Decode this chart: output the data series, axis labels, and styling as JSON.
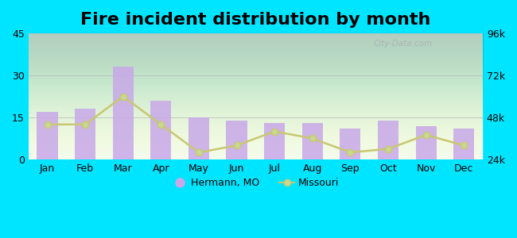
{
  "title": "Fire incident distribution by month",
  "months": [
    "Jan",
    "Feb",
    "Mar",
    "Apr",
    "May",
    "Jun",
    "Jul",
    "Aug",
    "Sep",
    "Oct",
    "Nov",
    "Dec"
  ],
  "hermann_bars": [
    17,
    18,
    33,
    21,
    15,
    14,
    13,
    13,
    11,
    14,
    12,
    11
  ],
  "missouri_line_right": [
    44000,
    44000,
    60000,
    44000,
    28000,
    32000,
    40000,
    36000,
    28000,
    30000,
    38000,
    32000
  ],
  "bar_color": "#c8a8e8",
  "bar_alpha": 0.85,
  "line_color": "#c8c870",
  "line_marker": "o",
  "line_marker_facecolor": "#c8d890",
  "background_outer": "#00e5ff",
  "background_plot_color": "#e8f5e0",
  "ylim_left": [
    0,
    45
  ],
  "ylim_right": [
    24000,
    96000
  ],
  "yticks_left": [
    0,
    15,
    30,
    45
  ],
  "yticks_right": [
    24000,
    48000,
    72000,
    96000
  ],
  "ytick_labels_right": [
    "24k",
    "48k",
    "72k",
    "96k"
  ],
  "grid_color": "#bbbbbb",
  "title_fontsize": 16,
  "legend_hermann": "Hermann, MO",
  "legend_missouri": "Missouri",
  "watermark": "City-Data.com"
}
